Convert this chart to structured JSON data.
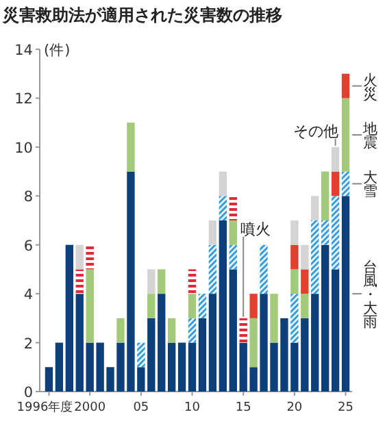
{
  "chart_data": {
    "type": "bar",
    "stacked": true,
    "title": "災害救助法が適用された災害数の推移",
    "ylabel": "(件)",
    "legend": false,
    "grid": false,
    "categories": [
      "1996年度",
      null,
      null,
      null,
      "2000",
      null,
      null,
      null,
      null,
      "05",
      null,
      null,
      null,
      null,
      "10",
      null,
      null,
      null,
      null,
      "15",
      null,
      null,
      null,
      null,
      "20",
      null,
      null,
      null,
      null,
      "25"
    ],
    "ylim": [
      0,
      14
    ],
    "yticks": [
      0,
      2,
      4,
      6,
      8,
      10,
      12,
      14
    ],
    "series": [
      {
        "name": "台風・大雨",
        "color": "#0d3f7a",
        "values": [
          1,
          2,
          6,
          4,
          2,
          2,
          1,
          2,
          9,
          1,
          3,
          4,
          2,
          2,
          2,
          3,
          4,
          7,
          5,
          2,
          1,
          4,
          2,
          3,
          2,
          3,
          4,
          6,
          5,
          8
        ]
      },
      {
        "name": "大雪",
        "color": "#3aa0dc",
        "values": [
          0,
          0,
          0,
          0,
          0,
          0,
          0,
          0,
          0,
          1,
          0,
          0,
          0,
          0,
          1,
          1,
          2,
          1,
          1,
          0,
          0,
          2,
          0,
          0,
          2,
          0,
          3,
          1,
          3,
          1
        ]
      },
      {
        "name": "地震",
        "color": "#a3c97a",
        "values": [
          0,
          0,
          0,
          0,
          3,
          0,
          0,
          1,
          2,
          0,
          1,
          1,
          1,
          0,
          1,
          0,
          0,
          0,
          1,
          0,
          2,
          0,
          2,
          0,
          1,
          1,
          0,
          2,
          0,
          3
        ]
      },
      {
        "name": "噴火",
        "color": "#e5283a",
        "values": [
          0,
          0,
          0,
          1,
          1,
          0,
          0,
          0,
          0,
          0,
          0,
          0,
          0,
          0,
          1,
          0,
          0,
          0,
          1,
          1,
          0,
          0,
          0,
          0,
          0,
          0,
          0,
          0,
          0,
          0
        ]
      },
      {
        "name": "火災",
        "color": "#e2402e",
        "values": [
          0,
          0,
          0,
          0,
          0,
          0,
          0,
          0,
          0,
          0,
          0,
          0,
          0,
          0,
          0,
          0,
          0,
          0,
          0,
          0,
          1,
          0,
          0,
          0,
          1,
          1,
          0,
          0,
          1,
          1
        ]
      },
      {
        "name": "その他",
        "color": "#d4d4d4",
        "values": [
          0,
          0,
          0,
          1,
          0,
          0,
          0,
          0,
          0,
          0,
          1,
          0,
          0,
          0,
          0,
          0,
          1,
          1,
          0,
          0,
          0,
          0,
          0,
          0,
          1,
          1,
          1,
          0,
          1,
          0
        ]
      }
    ]
  }
}
